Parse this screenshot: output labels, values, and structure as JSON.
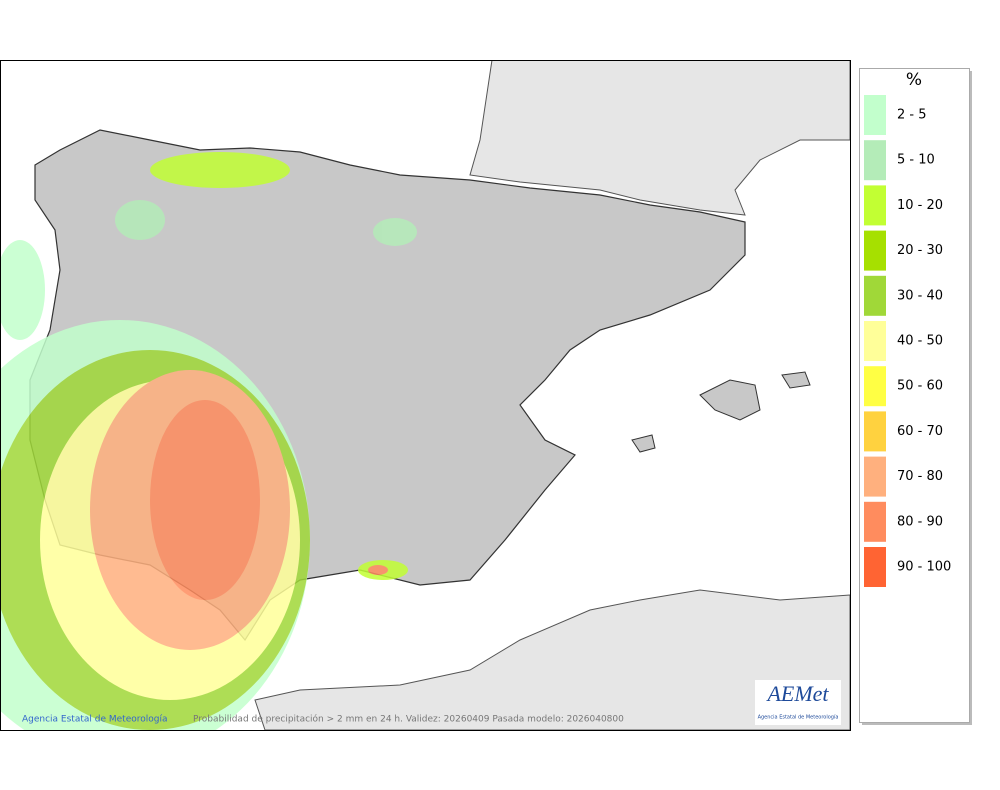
{
  "legend": {
    "title": "%",
    "items": [
      {
        "label": "2 - 5",
        "color": "#c2ffcc"
      },
      {
        "label": "5 - 10",
        "color": "#b4ecb8"
      },
      {
        "label": "10 - 20",
        "color": "#c2ff33"
      },
      {
        "label": "20 - 30",
        "color": "#a6e000"
      },
      {
        "label": "30 - 40",
        "color": "#a0d838"
      },
      {
        "label": "40 - 50",
        "color": "#ffff99"
      },
      {
        "label": "50 - 60",
        "color": "#ffff44"
      },
      {
        "label": "60 - 70",
        "color": "#ffd23f"
      },
      {
        "label": "70 - 80",
        "color": "#ffb07e"
      },
      {
        "label": "80 - 90",
        "color": "#ff8c5e"
      },
      {
        "label": "90 - 100",
        "color": "#ff6433"
      }
    ]
  },
  "footer": {
    "credit": "Agencia Estatal de Meteorología",
    "caption": "Probabilidad de precipitación > 2 mm en 24 h. Validez: 20260409 Pasada modelo: 2026040800"
  },
  "logo": {
    "text": "AEMet",
    "subtitle": "Agencia Estatal de Meteorología"
  }
}
